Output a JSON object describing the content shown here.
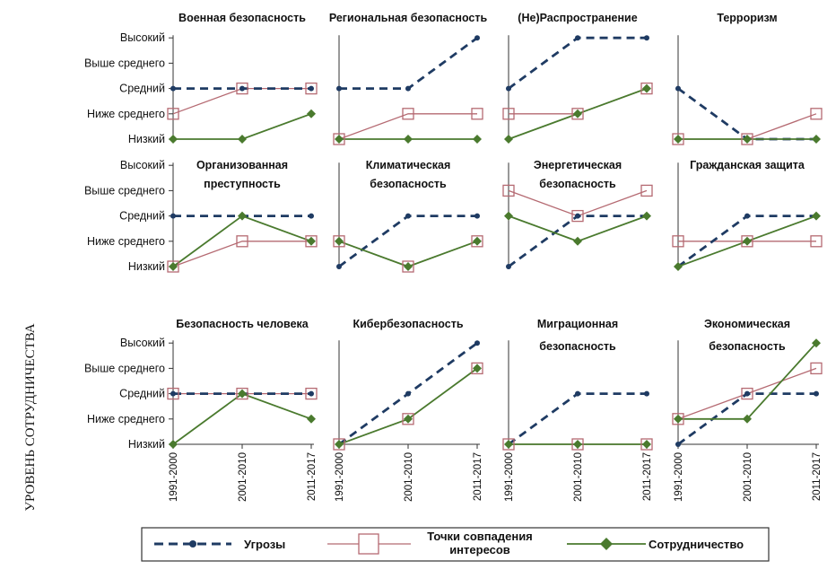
{
  "y_axis_title": "УРОВЕНЬ СОТРУДНИЧЕСТВА",
  "levels": [
    "Низкий",
    "Ниже среднего",
    "Средний",
    "Выше среднего",
    "Высокий"
  ],
  "periods": [
    "1991-2000",
    "2001-2010",
    "2011-2017"
  ],
  "colors": {
    "threats": "#1f3b63",
    "interests": "#b56a72",
    "cooperation": "#4a7a2e"
  },
  "legend": {
    "threats": "Угрозы",
    "interests": [
      "Точки совпадения",
      "интересов"
    ],
    "cooperation": "Сотрудничество"
  },
  "chart_data": {
    "type": "line",
    "value_scale": "1=Низкий, 2=Ниже среднего, 3=Средний, 4=Выше среднего, 5=Высокий",
    "x": [
      "1991-2000",
      "2001-2010",
      "2011-2017"
    ],
    "ylim": [
      1,
      5
    ],
    "series_names": [
      "Угрозы",
      "Точки совпадения интересов",
      "Сотрудничество"
    ],
    "panels": [
      {
        "title": [
          "Военная безопасность"
        ],
        "threats": [
          3,
          3,
          3
        ],
        "interests": [
          2,
          3,
          3
        ],
        "cooperation": [
          1,
          1,
          2
        ]
      },
      {
        "title": [
          "Региональная безопасность"
        ],
        "threats": [
          3,
          3,
          5
        ],
        "interests": [
          1,
          2,
          2
        ],
        "cooperation": [
          1,
          1,
          1
        ]
      },
      {
        "title": [
          "(Не)Распространение"
        ],
        "threats": [
          3,
          5,
          5
        ],
        "interests": [
          2,
          2,
          3
        ],
        "cooperation": [
          1,
          2,
          3
        ]
      },
      {
        "title": [
          "Терроризм"
        ],
        "threats": [
          3,
          1,
          1
        ],
        "interests": [
          1,
          1,
          2
        ],
        "cooperation": [
          1,
          1,
          1
        ]
      },
      {
        "title": [
          "Организованная",
          "преступность"
        ],
        "threats": [
          3,
          3,
          3
        ],
        "interests": [
          1,
          2,
          2
        ],
        "cooperation": [
          1,
          3,
          2
        ]
      },
      {
        "title": [
          "Климатическая",
          "безопасность"
        ],
        "threats": [
          1,
          3,
          3
        ],
        "interests": [
          2,
          1,
          2
        ],
        "cooperation": [
          2,
          1,
          2
        ]
      },
      {
        "title": [
          "Энергетическая",
          "безопасность"
        ],
        "threats": [
          1,
          3,
          3
        ],
        "interests": [
          4,
          3,
          4
        ],
        "cooperation": [
          3,
          2,
          3
        ]
      },
      {
        "title": [
          "Гражданская защита"
        ],
        "threats": [
          1,
          3,
          3
        ],
        "interests": [
          2,
          2,
          2
        ],
        "cooperation": [
          1,
          2,
          3
        ]
      },
      {
        "title": [
          "Безопасность человека"
        ],
        "threats": [
          3,
          3,
          3
        ],
        "interests": [
          3,
          3,
          3
        ],
        "cooperation": [
          1,
          3,
          2
        ]
      },
      {
        "title": [
          "Кибербезопасность"
        ],
        "threats": [
          1,
          3,
          5
        ],
        "interests": [
          1,
          2,
          4
        ],
        "cooperation": [
          1,
          2,
          4
        ]
      },
      {
        "title": [
          "Миграционная",
          "безопасность"
        ],
        "threats": [
          1,
          3,
          3
        ],
        "interests": [
          1,
          1,
          1
        ],
        "cooperation": [
          1,
          1,
          1
        ]
      },
      {
        "title": [
          "Экономическая",
          "безопасность"
        ],
        "threats": [
          1,
          3,
          3
        ],
        "interests": [
          2,
          3,
          4
        ],
        "cooperation": [
          2,
          2,
          5
        ]
      }
    ]
  }
}
